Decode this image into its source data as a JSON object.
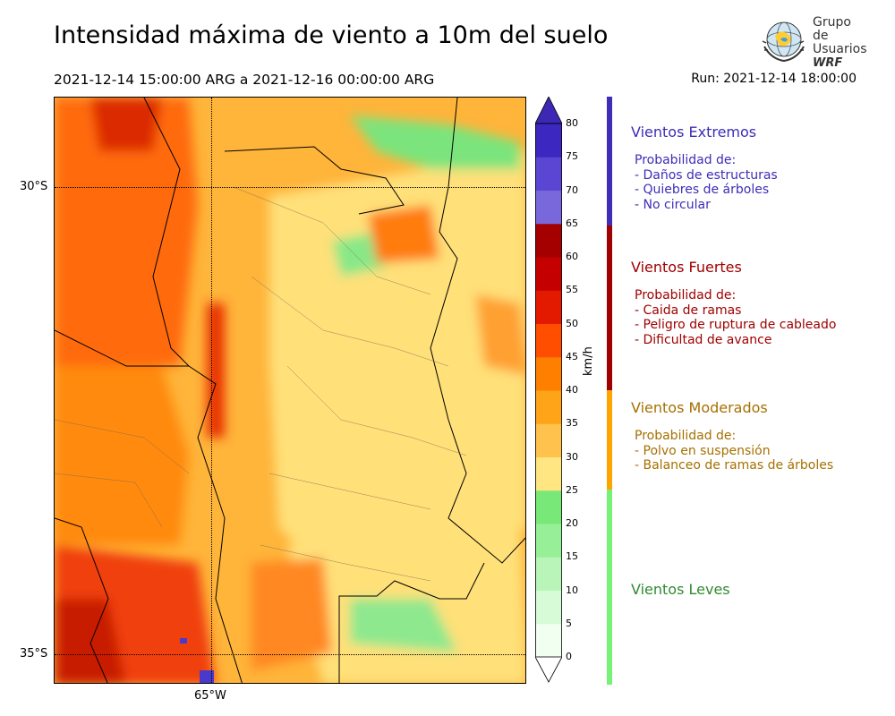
{
  "header": {
    "title": "Intensidad máxima de viento a 10m del suelo",
    "period": "2021-12-14 15:00:00 ARG  a  2021-12-16 00:00:00 ARG",
    "run": "Run: 2021-12-14 18:00:00"
  },
  "logo": {
    "line1": "Grupo de",
    "line2": "Usuarios",
    "line3": "WRF"
  },
  "map": {
    "lat_labels": [
      "30°S",
      "35°S"
    ],
    "lon_labels": [
      "65°W"
    ]
  },
  "colorbar": {
    "unit": "km/h",
    "ticks": [
      "0",
      "5",
      "10",
      "15",
      "20",
      "25",
      "30",
      "35",
      "40",
      "45",
      "50",
      "55",
      "60",
      "65",
      "70",
      "75",
      "80"
    ],
    "colors": [
      "#f0fff0",
      "#d6fbd6",
      "#b9f5b9",
      "#97ef97",
      "#78e978",
      "#ffe682",
      "#ffc24d",
      "#ffa319",
      "#ff7f00",
      "#ff4e00",
      "#e41a00",
      "#c40000",
      "#a40000",
      "#7868dc",
      "#5a46d2",
      "#3c28c0",
      "#3c28b4"
    ]
  },
  "categories": [
    {
      "title": "Vientos Extremos",
      "color": "#3d2db8",
      "text_color": "#3d2db8",
      "lines": [
        "Probabilidad de:",
        "- Daños de estructuras",
        "- Quiebres de árboles",
        "- No circular"
      ]
    },
    {
      "title": "Vientos Fuertes",
      "color": "#a00000",
      "text_color": "#a00000",
      "lines": [
        "Probabilidad de:",
        "- Caida de ramas",
        "- Peligro de ruptura de cableado",
        "- Dificultad de avance"
      ]
    },
    {
      "title": "Vientos Moderados",
      "color": "#ffa500",
      "text_color": "#a67000",
      "lines": [
        "Probabilidad de:",
        "- Polvo en suspensión",
        "- Balanceo de ramas de árboles"
      ]
    },
    {
      "title": "Vientos Leves",
      "color": "#77f277",
      "text_color": "#2f8a2f",
      "lines": []
    }
  ]
}
